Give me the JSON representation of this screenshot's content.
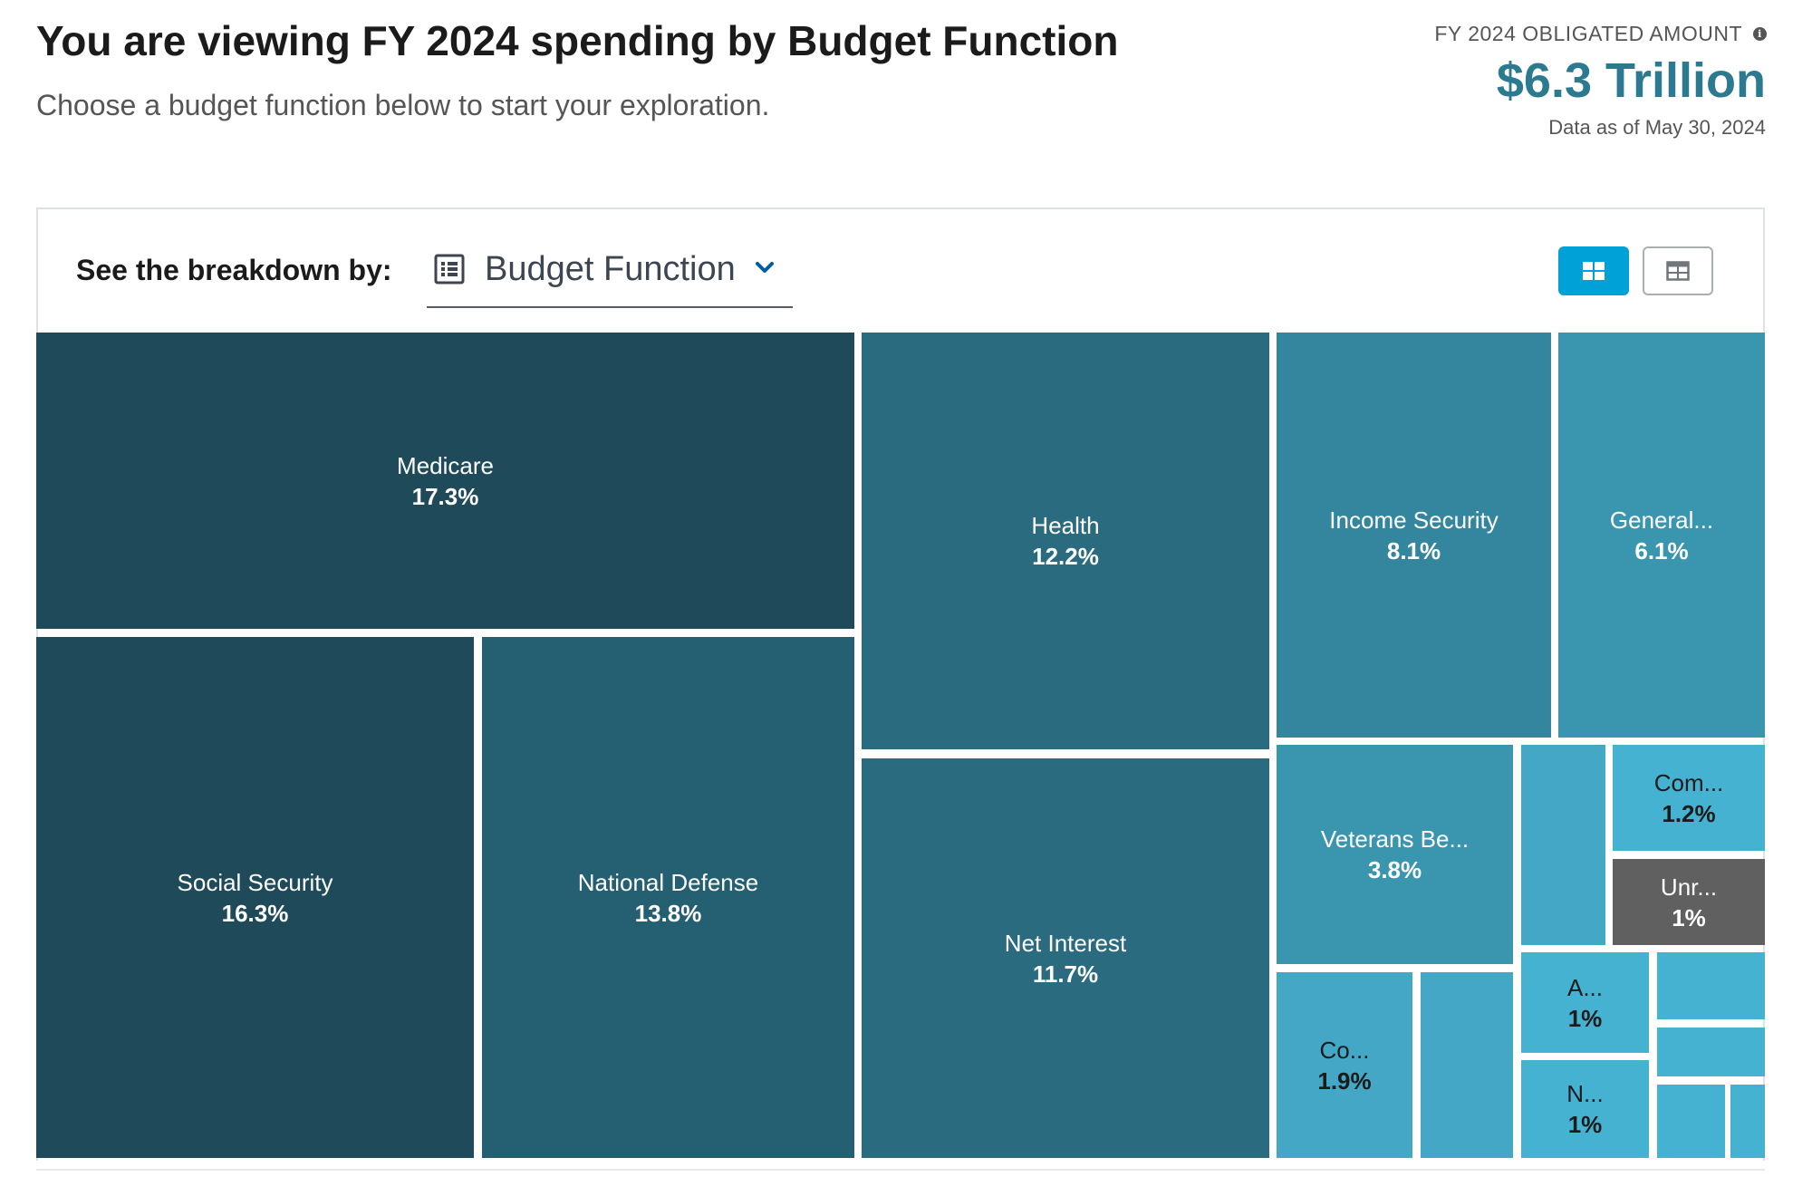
{
  "header": {
    "title": "You are viewing FY 2024 spending by Budget Function",
    "subtitle": "Choose a budget function below to start your exploration."
  },
  "summary": {
    "label": "FY 2024 OBLIGATED AMOUNT",
    "value": "$6.3 Trillion",
    "as_of": "Data as of May 30, 2024",
    "info_icon": "info-icon"
  },
  "controls": {
    "breakdown_label": "See the breakdown by:",
    "dropdown_value": "Budget Function",
    "dropdown_icon": "table-list-icon",
    "view_toggle": [
      "treemap-view",
      "table-view"
    ],
    "active_view": "treemap-view"
  },
  "colors": {
    "accent": "#00a1d6",
    "amount": "#2b7a90",
    "level1": "#1e4a5a",
    "level2": "#255f72",
    "level3": "#2a6b7f",
    "level4": "#33869d",
    "level5": "#3a95ae",
    "level6": "#45a7c6",
    "level7": "#46b2d2",
    "unreported": "#606060"
  },
  "chart_data": {
    "type": "treemap",
    "title": "FY 2024 spending by Budget Function",
    "total": "$6.3 Trillion",
    "tiles": [
      {
        "name": "Medicare",
        "label": "Medicare",
        "percent": 17.3,
        "pct_label": "17.3%",
        "color": "level1"
      },
      {
        "name": "Social Security",
        "label": "Social Security",
        "percent": 16.3,
        "pct_label": "16.3%",
        "color": "level1"
      },
      {
        "name": "National Defense",
        "label": "National Defense",
        "percent": 13.8,
        "pct_label": "13.8%",
        "color": "level2"
      },
      {
        "name": "Health",
        "label": "Health",
        "percent": 12.2,
        "pct_label": "12.2%",
        "color": "level3"
      },
      {
        "name": "Net Interest",
        "label": "Net Interest",
        "percent": 11.7,
        "pct_label": "11.7%",
        "color": "level3"
      },
      {
        "name": "Income Security",
        "label": "Income Security",
        "percent": 8.1,
        "pct_label": "8.1%",
        "color": "level4"
      },
      {
        "name": "General",
        "label": "General...",
        "percent": 6.1,
        "pct_label": "6.1%",
        "color": "level5"
      },
      {
        "name": "Veterans Benefits",
        "label": "Veterans Be...",
        "percent": 3.8,
        "pct_label": "3.8%",
        "color": "level5"
      },
      {
        "name": "Co",
        "label": "Co...",
        "percent": 1.9,
        "pct_label": "1.9%",
        "color": "level6"
      },
      {
        "name": "Unlabeled small A",
        "label": "",
        "percent": null,
        "pct_label": "",
        "color": "level6"
      },
      {
        "name": "Unlabeled small B",
        "label": "",
        "percent": null,
        "pct_label": "",
        "color": "level6"
      },
      {
        "name": "Com",
        "label": "Com...",
        "percent": 1.2,
        "pct_label": "1.2%",
        "color": "level7"
      },
      {
        "name": "Unreported",
        "label": "Unr...",
        "percent": 1.0,
        "pct_label": "1%",
        "color": "unreported"
      },
      {
        "name": "A",
        "label": "A...",
        "percent": 1.0,
        "pct_label": "1%",
        "color": "level7"
      },
      {
        "name": "N",
        "label": "N...",
        "percent": 1.0,
        "pct_label": "1%",
        "color": "level7"
      },
      {
        "name": "Unlabeled small C",
        "label": "",
        "percent": null,
        "pct_label": "",
        "color": "level7"
      },
      {
        "name": "Unlabeled small D",
        "label": "",
        "percent": null,
        "pct_label": "",
        "color": "level7"
      },
      {
        "name": "Unlabeled small E",
        "label": "",
        "percent": null,
        "pct_label": "",
        "color": "level7"
      },
      {
        "name": "Unlabeled small F",
        "label": "",
        "percent": null,
        "pct_label": "",
        "color": "level7"
      }
    ]
  }
}
